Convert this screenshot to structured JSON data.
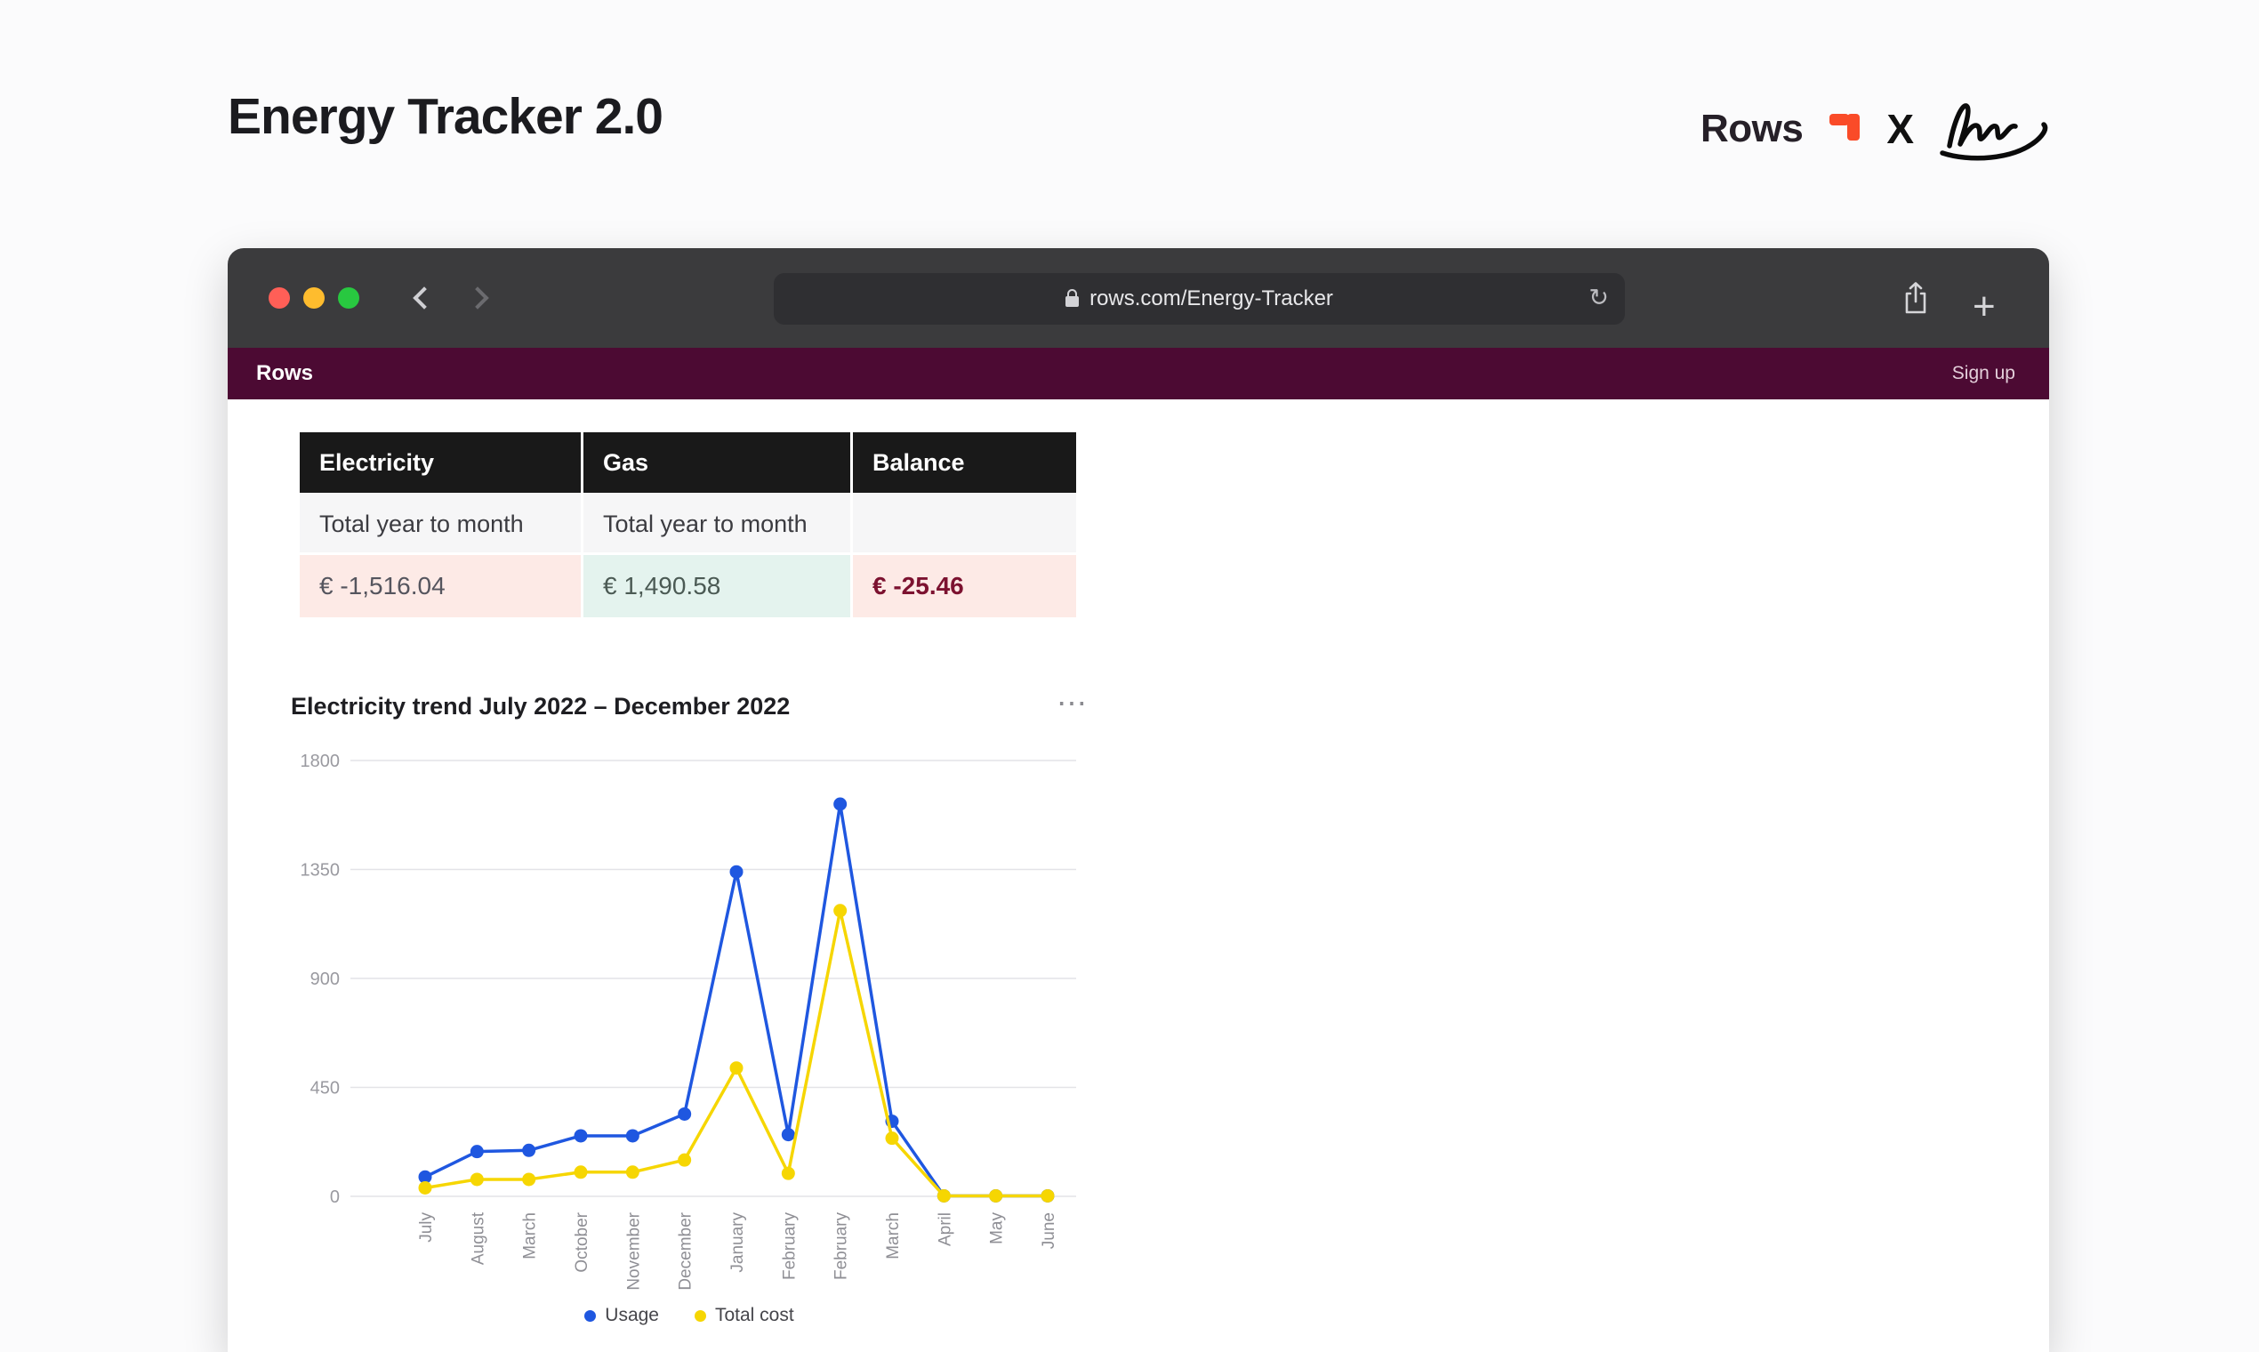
{
  "page": {
    "title": "Energy Tracker 2.0"
  },
  "brandbar": {
    "rows_label": "Rows",
    "x_label": "X",
    "rows_accent": "#fa4b28"
  },
  "browser": {
    "url": "rows.com/Energy-Tracker",
    "traffic_lights": [
      "#ff5f57",
      "#febc2e",
      "#28c840"
    ],
    "icons": {
      "reload": "↻",
      "plus": "+",
      "ellipsis": "⋯"
    }
  },
  "appbar": {
    "brand": "Rows",
    "signup_label": "Sign up",
    "background": "#4c0a33"
  },
  "summary": {
    "headers": [
      "Electricity",
      "Gas",
      "Balance"
    ],
    "subheaders": [
      "Total year to month",
      "Total year to month",
      ""
    ],
    "values": [
      {
        "text": "€ -1,516.04",
        "bg": "#fdeae6",
        "color": "#55555e",
        "bold": false
      },
      {
        "text": "€ 1,490.58",
        "bg": "#e4f3ee",
        "color": "#4b5a54",
        "bold": false
      },
      {
        "text": "€ -25.46",
        "bg": "#fdeae6",
        "color": "#7c1230",
        "bold": true
      }
    ]
  },
  "chart_data": {
    "type": "line",
    "title": "Electricity trend July 2022 – December 2022",
    "categories": [
      "July",
      "August",
      "March",
      "October",
      "November",
      "December",
      "January",
      "February",
      "February",
      "March",
      "April",
      "May",
      "June"
    ],
    "series": [
      {
        "name": "Usage",
        "color": "#1f57e0",
        "values": [
          80,
          185,
          190,
          250,
          250,
          340,
          1340,
          255,
          1620,
          310,
          2,
          2,
          2
        ]
      },
      {
        "name": "Total cost",
        "color": "#f6d602",
        "values": [
          35,
          70,
          70,
          100,
          100,
          150,
          530,
          95,
          1180,
          240,
          2,
          2,
          2
        ]
      }
    ],
    "ylim": [
      0,
      1800
    ],
    "yticks": [
      0,
      450,
      900,
      1350,
      1800
    ],
    "grid": true,
    "legend_position": "bottom"
  }
}
